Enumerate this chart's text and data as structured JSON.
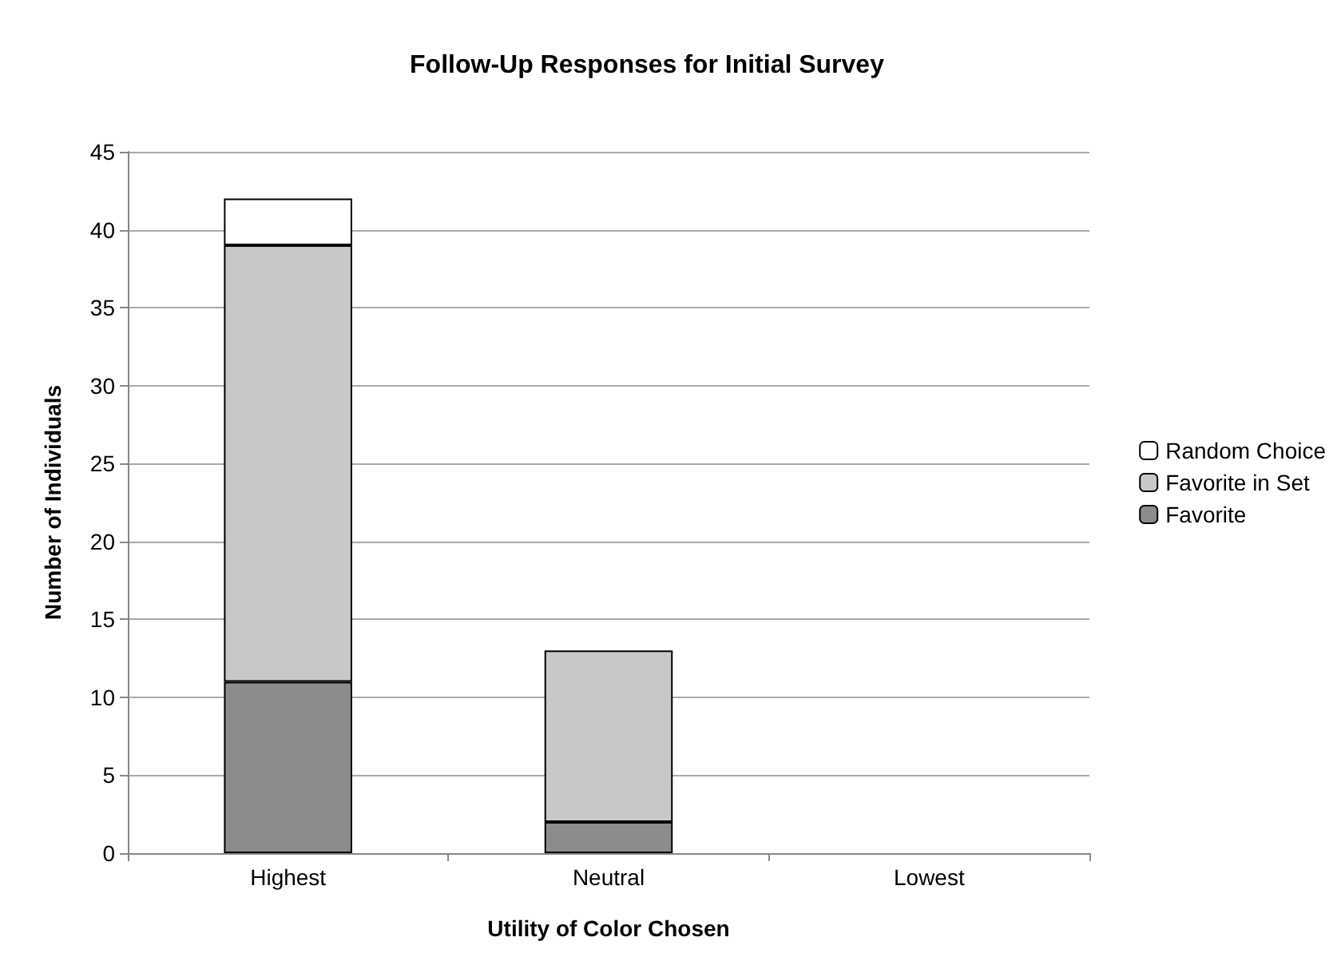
{
  "chart_data": {
    "type": "bar",
    "title": "Follow-Up Responses for Initial Survey",
    "xlabel": "Utility of Color Chosen",
    "ylabel": "Number of Individuals",
    "categories": [
      "Highest",
      "Neutral",
      "Lowest"
    ],
    "series": [
      {
        "name": "Favorite",
        "color": "#8c8c8c",
        "values": [
          11,
          2,
          null
        ]
      },
      {
        "name": "Favorite in Set",
        "color": "#c8c8c8",
        "values": [
          28,
          11,
          null
        ]
      },
      {
        "name": "Random Choice",
        "color": "#ffffff",
        "values": [
          3,
          null,
          null
        ]
      }
    ],
    "stacked": true,
    "ylim": [
      0,
      45
    ],
    "yticks": [
      0,
      5,
      10,
      15,
      20,
      25,
      30,
      35,
      40,
      45
    ],
    "grid": "y",
    "legend": "right"
  }
}
